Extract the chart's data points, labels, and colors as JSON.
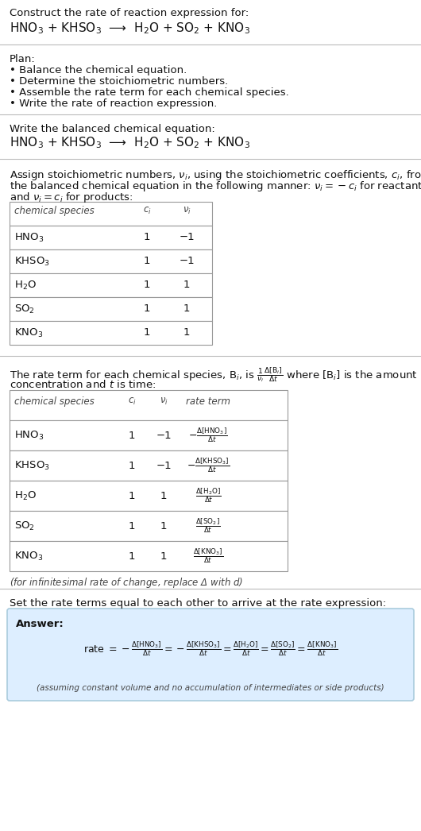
{
  "bg_color": "#ffffff",
  "title_text": "Construct the rate of reaction expression for:",
  "equation_line": "HNO$_3$ + KHSO$_3$  ⟶  H$_2$O + SO$_2$ + KNO$_3$",
  "plan_header": "Plan:",
  "plan_bullets": [
    "• Balance the chemical equation.",
    "• Determine the stoichiometric numbers.",
    "• Assemble the rate term for each chemical species.",
    "• Write the rate of reaction expression."
  ],
  "balanced_header": "Write the balanced chemical equation:",
  "balanced_eq": "HNO$_3$ + KHSO$_3$  ⟶  H$_2$O + SO$_2$ + KNO$_3$",
  "stoich_intro1": "Assign stoichiometric numbers, $\\nu_i$, using the stoichiometric coefficients, $c_i$, from",
  "stoich_intro2": "the balanced chemical equation in the following manner: $\\nu_i = -c_i$ for reactants",
  "stoich_intro3": "and $\\nu_i = c_i$ for products:",
  "table1_headers": [
    "chemical species",
    "$c_i$",
    "$\\nu_i$"
  ],
  "table1_rows": [
    [
      "HNO$_3$",
      "1",
      "−1"
    ],
    [
      "KHSO$_3$",
      "1",
      "−1"
    ],
    [
      "H$_2$O",
      "1",
      "1"
    ],
    [
      "SO$_2$",
      "1",
      "1"
    ],
    [
      "KNO$_3$",
      "1",
      "1"
    ]
  ],
  "rate_intro1": "The rate term for each chemical species, B$_i$, is $\\frac{1}{\\nu_i}\\frac{\\Delta[\\mathrm{B}_i]}{\\Delta t}$ where [B$_i$] is the amount",
  "rate_intro2": "concentration and $t$ is time:",
  "table2_headers": [
    "chemical species",
    "$c_i$",
    "$\\nu_i$",
    "rate term"
  ],
  "table2_rows": [
    [
      "HNO$_3$",
      "1",
      "−1",
      "$-\\frac{\\Delta[\\mathrm{HNO_3}]}{\\Delta t}$"
    ],
    [
      "KHSO$_3$",
      "1",
      "−1",
      "$-\\frac{\\Delta[\\mathrm{KHSO_3}]}{\\Delta t}$"
    ],
    [
      "H$_2$O",
      "1",
      "1",
      "$\\frac{\\Delta[\\mathrm{H_2O}]}{\\Delta t}$"
    ],
    [
      "SO$_2$",
      "1",
      "1",
      "$\\frac{\\Delta[\\mathrm{SO_2}]}{\\Delta t}$"
    ],
    [
      "KNO$_3$",
      "1",
      "1",
      "$\\frac{\\Delta[\\mathrm{KNO_3}]}{\\Delta t}$"
    ]
  ],
  "infinitesimal_note": "(for infinitesimal rate of change, replace Δ with $d$)",
  "set_rate_text": "Set the rate terms equal to each other to arrive at the rate expression:",
  "answer_box_color": "#ddeeff",
  "answer_label": "Answer:",
  "answer_rate_expr": "rate $= -\\frac{\\Delta[\\mathrm{HNO_3}]}{\\Delta t} = -\\frac{\\Delta[\\mathrm{KHSO_3}]}{\\Delta t} = \\frac{\\Delta[\\mathrm{H_2O}]}{\\Delta t} = \\frac{\\Delta[\\mathrm{SO_2}]}{\\Delta t} = \\frac{\\Delta[\\mathrm{KNO_3}]}{\\Delta t}$",
  "answer_footnote": "(assuming constant volume and no accumulation of intermediates or side products)",
  "separator_color": "#bbbbbb",
  "table_line_color": "#999999",
  "text_color": "#111111",
  "gray_text": "#444444",
  "answer_border_color": "#aaccdd"
}
